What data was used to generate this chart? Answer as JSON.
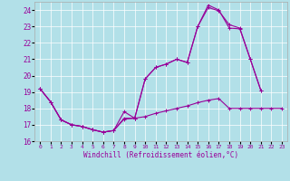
{
  "xlabel": "Windchill (Refroidissement éolien,°C)",
  "background_color": "#b2e0e8",
  "grid_color": "#ffffff",
  "line_color": "#990099",
  "ylim": [
    16,
    24.5
  ],
  "xlim": [
    -0.5,
    23.5
  ],
  "yticks": [
    16,
    17,
    18,
    19,
    20,
    21,
    22,
    23,
    24
  ],
  "xticks": [
    0,
    1,
    2,
    3,
    4,
    5,
    6,
    7,
    8,
    9,
    10,
    11,
    12,
    13,
    14,
    15,
    16,
    17,
    18,
    19,
    20,
    21,
    22,
    23
  ],
  "series1_x": [
    0,
    1,
    2,
    3,
    4,
    5,
    6,
    7,
    8,
    9,
    10,
    11,
    12,
    13,
    14,
    15,
    16,
    17,
    18,
    19,
    20,
    21,
    22,
    23
  ],
  "series1_y": [
    19.2,
    18.4,
    17.3,
    17.0,
    16.9,
    16.7,
    16.55,
    16.65,
    17.35,
    17.4,
    17.5,
    17.7,
    17.85,
    18.0,
    18.15,
    18.35,
    18.5,
    18.6,
    18.0,
    18.0,
    18.0,
    18.0,
    18.0,
    18.0
  ],
  "series2_x": [
    0,
    1,
    2,
    3,
    4,
    5,
    6,
    7,
    8,
    9,
    10,
    11,
    12,
    13,
    14,
    15,
    16,
    17,
    18,
    19,
    20,
    21,
    22,
    23
  ],
  "series2_y": [
    19.2,
    18.4,
    17.3,
    17.0,
    16.9,
    16.7,
    16.55,
    16.65,
    17.8,
    17.4,
    19.8,
    20.5,
    20.7,
    21.0,
    20.8,
    23.0,
    24.15,
    23.95,
    23.1,
    22.9,
    21.0,
    19.1,
    null,
    null
  ],
  "series3_x": [
    0,
    1,
    2,
    3,
    4,
    5,
    6,
    7,
    8,
    9,
    10,
    11,
    12,
    13,
    14,
    15,
    16,
    17,
    18,
    19,
    20,
    21,
    22,
    23
  ],
  "series3_y": [
    19.2,
    18.4,
    17.3,
    17.0,
    16.9,
    16.7,
    16.55,
    16.65,
    17.4,
    17.4,
    19.8,
    20.5,
    20.7,
    21.0,
    20.8,
    23.0,
    24.3,
    24.0,
    22.9,
    22.85,
    21.0,
    19.1,
    null,
    null
  ]
}
